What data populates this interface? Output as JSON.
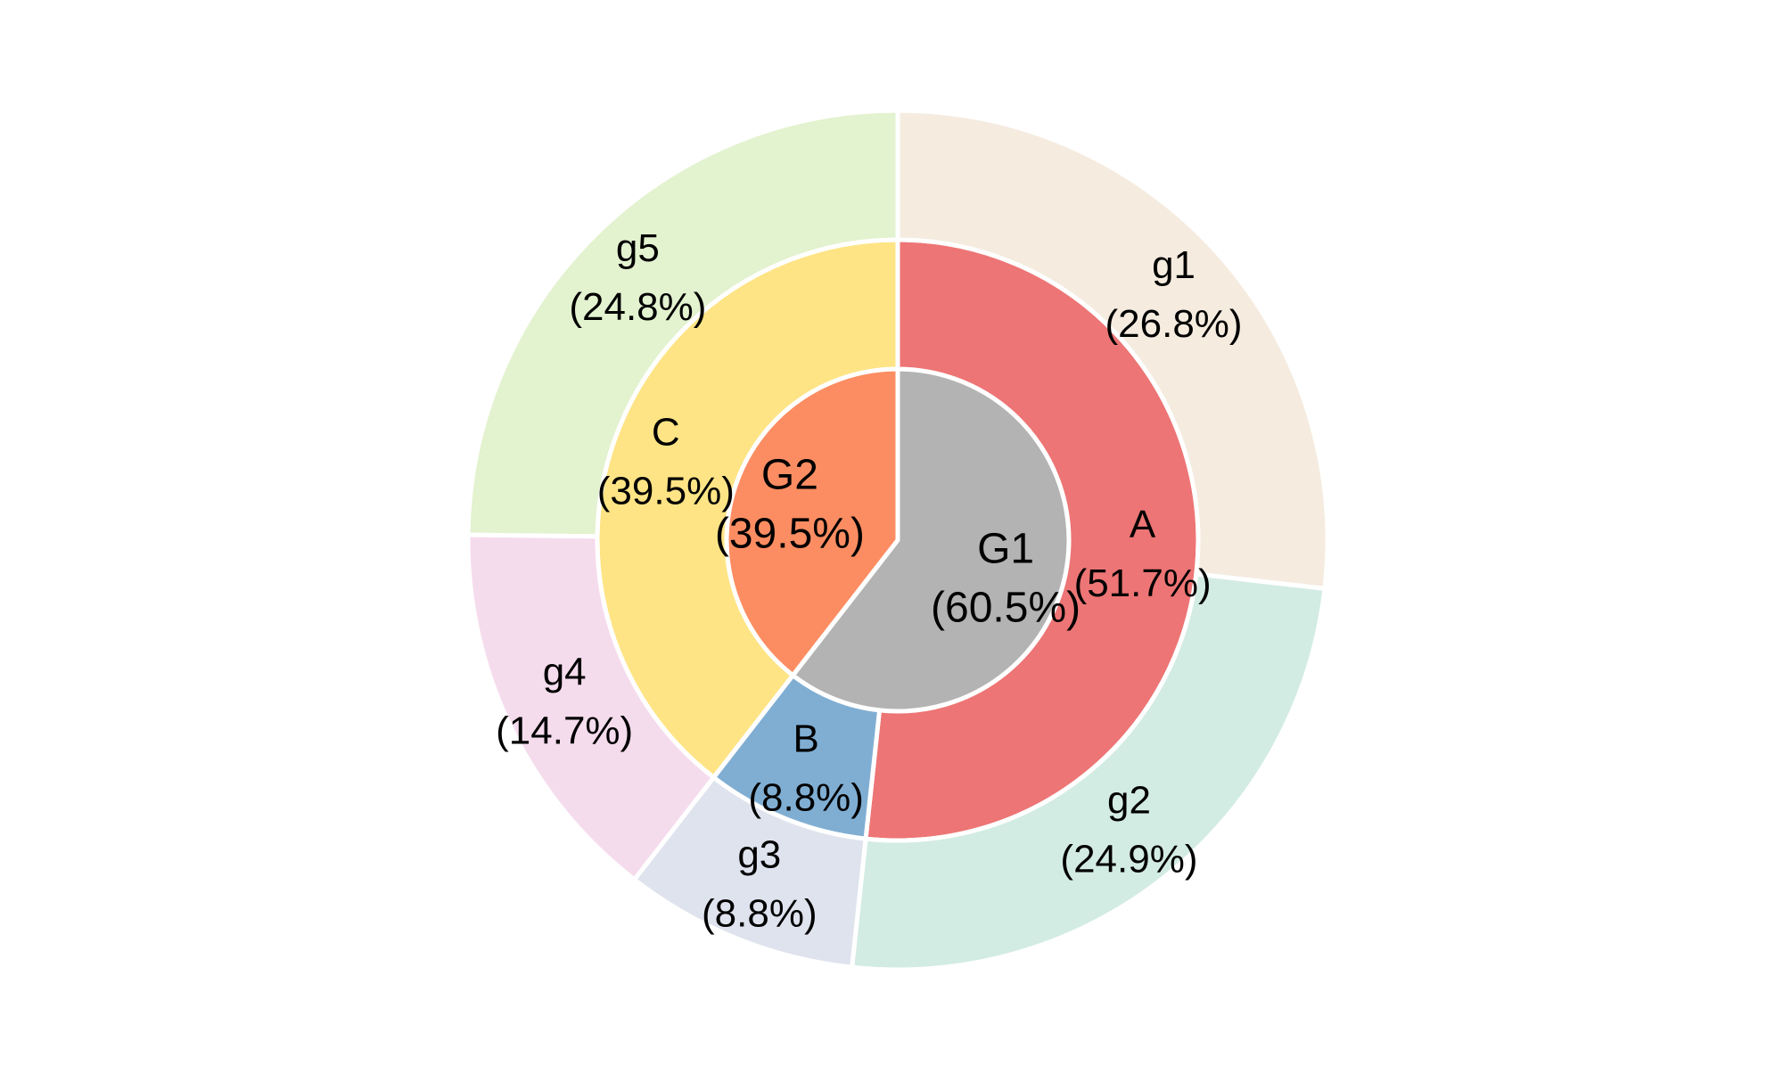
{
  "chart_data": {
    "type": "pie",
    "subtype": "nested-sunburst",
    "title": "",
    "rings": [
      {
        "level": "inner",
        "slices": [
          {
            "label": "G1",
            "percent_text": "(60.5%)",
            "value": 60.5,
            "color": "#b3b3b3"
          },
          {
            "label": "G2",
            "percent_text": "(39.5%)",
            "value": 39.5,
            "color": "#fc8d62"
          }
        ]
      },
      {
        "level": "middle",
        "slices": [
          {
            "label": "A",
            "percent_text": "(51.7%)",
            "value": 51.7,
            "color": "#ed7575",
            "parent": "G1"
          },
          {
            "label": "B",
            "percent_text": "(8.8%)",
            "value": 8.8,
            "color": "#80aed3",
            "parent": "G1"
          },
          {
            "label": "C",
            "percent_text": "(39.5%)",
            "value": 39.5,
            "color": "#fee485",
            "parent": "G2"
          }
        ]
      },
      {
        "level": "outer",
        "slices": [
          {
            "label": "g1",
            "percent_text": "(26.8%)",
            "value": 26.8,
            "color": "#f5ebdf",
            "parent": "A"
          },
          {
            "label": "g2",
            "percent_text": "(24.9%)",
            "value": 24.9,
            "color": "#d3ece3",
            "parent": "A"
          },
          {
            "label": "g3",
            "percent_text": "(8.8%)",
            "value": 8.8,
            "color": "#dfe3ee",
            "parent": "B"
          },
          {
            "label": "g4",
            "percent_text": "(14.7%)",
            "value": 14.7,
            "color": "#f5dced",
            "parent": "C"
          },
          {
            "label": "g5",
            "percent_text": "(24.8%)",
            "value": 24.8,
            "color": "#e3f2cf",
            "parent": "C"
          }
        ]
      }
    ],
    "start_angle": "12 o'clock",
    "direction": "clockwise",
    "uncovered_gap": "between g5 and g1 at the top"
  }
}
